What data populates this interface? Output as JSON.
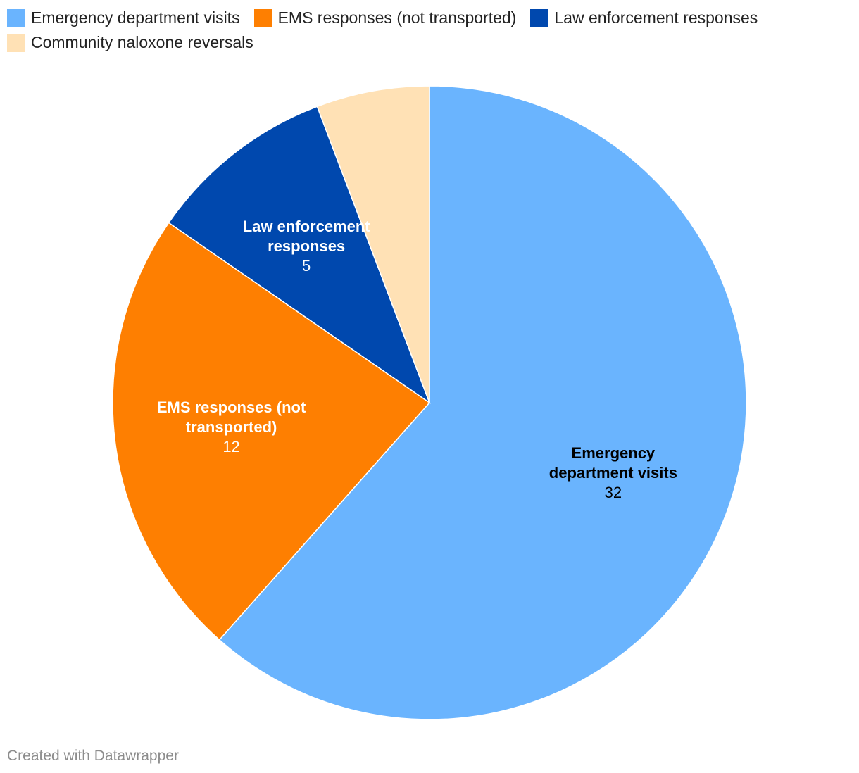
{
  "chart_data": {
    "type": "pie",
    "title": "",
    "categories": [
      "Emergency department visits",
      "EMS responses (not transported)",
      "Law enforcement responses",
      "Community naloxone reversals"
    ],
    "values": [
      32,
      12,
      5,
      3
    ],
    "colors": [
      "#6ab4fe",
      "#fe7f01",
      "#0048ae",
      "#ffe1b5"
    ],
    "label_colors": [
      "#000000",
      "#ffffff",
      "#ffffff",
      "#000000"
    ],
    "slice_labels": [
      {
        "lines": [
          "Emergency",
          "department visits"
        ],
        "value": "32"
      },
      {
        "lines": [
          "EMS responses (not",
          "transported)"
        ],
        "value": "12"
      },
      {
        "lines": [
          "Law enforcement",
          "responses"
        ],
        "value": "5"
      },
      null
    ],
    "legend_placement": "top-left",
    "start_angle": "12 o'clock, clockwise"
  },
  "credit": "Created with Datawrapper"
}
